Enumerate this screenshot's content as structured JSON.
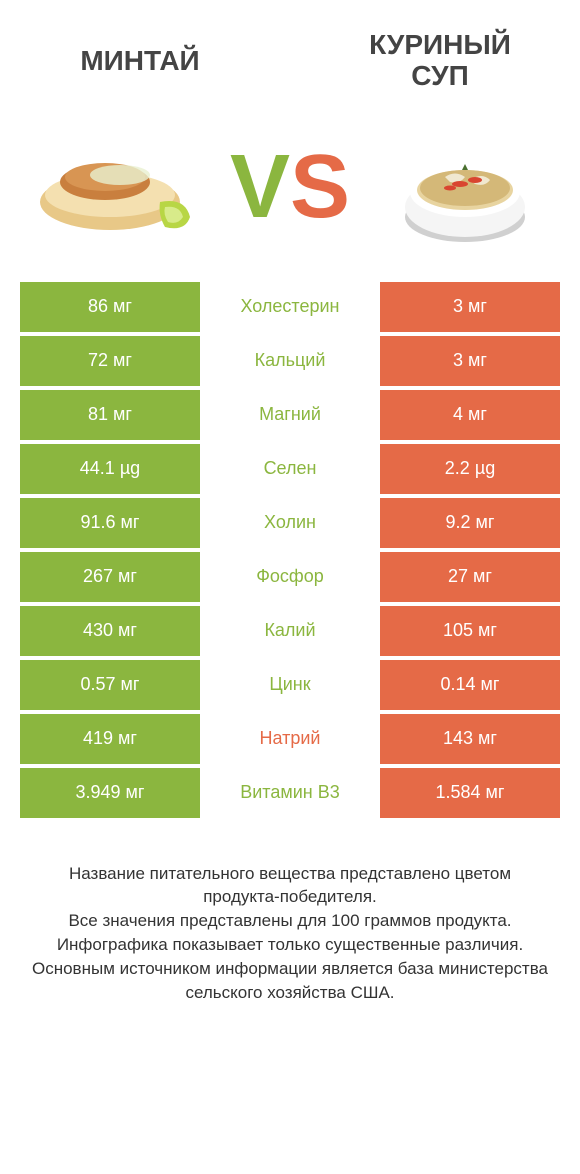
{
  "colors": {
    "left_bg": "#8bb63f",
    "right_bg": "#e56a47",
    "left_text": "#8bb63f",
    "right_text": "#e56a47"
  },
  "header": {
    "left_title": "МИНТАЙ",
    "right_title_line1": "КУРИНЫЙ",
    "right_title_line2": "СУП",
    "vs_v": "V",
    "vs_s": "S"
  },
  "rows": [
    {
      "left": "86 мг",
      "label": "Холестерин",
      "right": "3 мг",
      "winner": "left"
    },
    {
      "left": "72 мг",
      "label": "Кальций",
      "right": "3 мг",
      "winner": "left"
    },
    {
      "left": "81 мг",
      "label": "Магний",
      "right": "4 мг",
      "winner": "left"
    },
    {
      "left": "44.1 µg",
      "label": "Селен",
      "right": "2.2 µg",
      "winner": "left"
    },
    {
      "left": "91.6 мг",
      "label": "Холин",
      "right": "9.2 мг",
      "winner": "left"
    },
    {
      "left": "267 мг",
      "label": "Фосфор",
      "right": "27 мг",
      "winner": "left"
    },
    {
      "left": "430 мг",
      "label": "Калий",
      "right": "105 мг",
      "winner": "left"
    },
    {
      "left": "0.57 мг",
      "label": "Цинк",
      "right": "0.14 мг",
      "winner": "left"
    },
    {
      "left": "419 мг",
      "label": "Натрий",
      "right": "143 мг",
      "winner": "right"
    },
    {
      "left": "3.949 мг",
      "label": "Витамин B3",
      "right": "1.584 мг",
      "winner": "left"
    }
  ],
  "footer": {
    "line1": "Название питательного вещества представлено цветом продукта-победителя.",
    "line2": "Все значения представлены для 100 граммов продукта.",
    "line3": "Инфографика показывает только существенные различия.",
    "line4": "Основным источником информации является база министерства сельского хозяйства США."
  }
}
